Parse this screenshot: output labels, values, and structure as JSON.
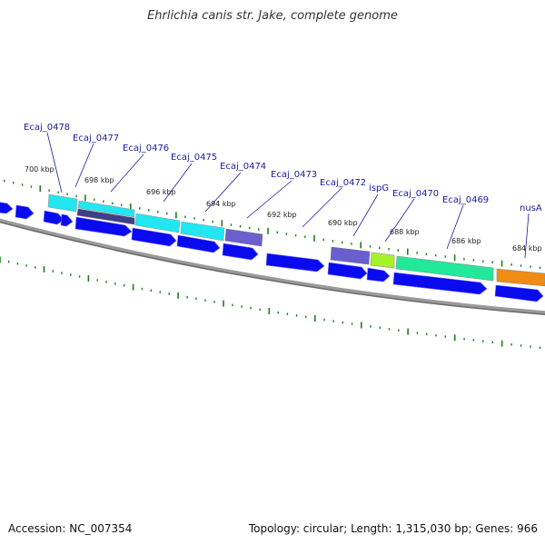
{
  "title": "Ehrlichia canis str. Jake, complete genome",
  "footer": {
    "accession": "Accession: NC_007354",
    "summary": "Topology: circular; Length: 1,315,030 bp; Genes: 966"
  },
  "gene_labels": [
    "Ecaj_0478",
    "Ecaj_0477",
    "Ecaj_0476",
    "Ecaj_0475",
    "Ecaj_0474",
    "Ecaj_0473",
    "Ecaj_0472",
    "ispG",
    "Ecaj_0470",
    "Ecaj_0469",
    "nusA"
  ],
  "kbp_labels": [
    "700 kbp",
    "698 kbp",
    "696 kbp",
    "694 kbp",
    "692 kbp",
    "690 kbp",
    "688 kbp",
    "686 kbp",
    "684 kbp"
  ],
  "colors": {
    "label": "#1a1aa0",
    "tick": "#1e7d1e",
    "backbone": "#808080",
    "cds": "#0a0aee",
    "cyan": "#22e6f0",
    "slate": "#6a5fcf",
    "darkslate": "#3e3e8c",
    "lime": "#a6f22a",
    "spring": "#22e89a",
    "orange": "#f08c14"
  }
}
